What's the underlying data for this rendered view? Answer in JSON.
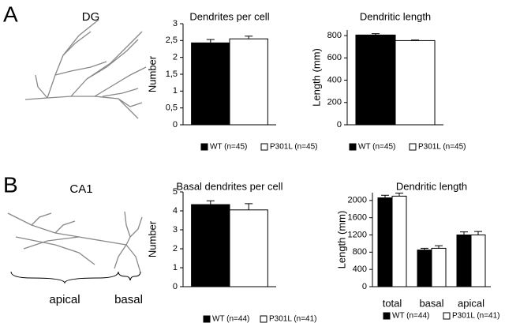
{
  "panels": [
    {
      "label": "A",
      "region": "DG"
    },
    {
      "label": "B",
      "region": "CA1",
      "annotations": [
        "apical",
        "basal"
      ]
    }
  ],
  "chart_data": [
    {
      "type": "bar",
      "title": "Dendrites per cell",
      "y_label": "Number",
      "categories": [
        null
      ],
      "series": [
        {
          "name": "WT (n=45)",
          "color": "#000000",
          "values": [
            2.43
          ],
          "errors": [
            0.1
          ]
        },
        {
          "name": "P301L (n=45)",
          "color": "#ffffff",
          "values": [
            2.55
          ],
          "errors": [
            0.08
          ]
        }
      ],
      "ylim": [
        0,
        3
      ],
      "yticks": [
        0,
        {
          "value": 0.5,
          "label": "0,5"
        },
        1,
        {
          "value": 1.5,
          "label": "1,5"
        },
        2,
        {
          "value": 2.5,
          "label": "2,5"
        },
        3
      ],
      "legend": "bottom"
    },
    {
      "type": "bar",
      "title": "Dendritic length",
      "y_label": "Length (mm)",
      "categories": [
        null
      ],
      "series": [
        {
          "name": "WT (n=45)",
          "color": "#000000",
          "values": [
            805
          ],
          "errors": [
            12
          ]
        },
        {
          "name": "P301L (n=45)",
          "color": "#ffffff",
          "values": [
            755
          ],
          "errors": [
            5
          ]
        }
      ],
      "ylim": [
        0,
        850
      ],
      "yticks": [
        0,
        200,
        400,
        600,
        800
      ],
      "legend": "bottom"
    },
    {
      "type": "bar",
      "title": "Basal dendrites per cell",
      "y_label": "Number",
      "categories": [
        null
      ],
      "series": [
        {
          "name": "WT (n=44)",
          "color": "#000000",
          "values": [
            4.33
          ],
          "errors": [
            0.2
          ]
        },
        {
          "name": "P301L (n=41)",
          "color": "#ffffff",
          "values": [
            4.05
          ],
          "errors": [
            0.33
          ]
        }
      ],
      "ylim": [
        0,
        5
      ],
      "yticks": [
        0,
        1,
        2,
        3,
        4,
        5
      ],
      "legend": "bottom"
    },
    {
      "type": "bar",
      "title": "Dendritic length",
      "y_label": "Length (mm)",
      "categories": [
        "total",
        "basal",
        "apical"
      ],
      "series": [
        {
          "name": "WT (n=44)",
          "color": "#000000",
          "values": [
            2060,
            850,
            1200
          ],
          "errors": [
            60,
            40,
            70
          ]
        },
        {
          "name": "P301L (n=41)",
          "color": "#ffffff",
          "values": [
            2100,
            890,
            1200
          ],
          "errors": [
            70,
            60,
            80
          ]
        }
      ],
      "ylim": [
        0,
        2180
      ],
      "yticks": [
        0,
        400,
        800,
        1200,
        1600,
        2000
      ],
      "legend": "bottom"
    }
  ]
}
